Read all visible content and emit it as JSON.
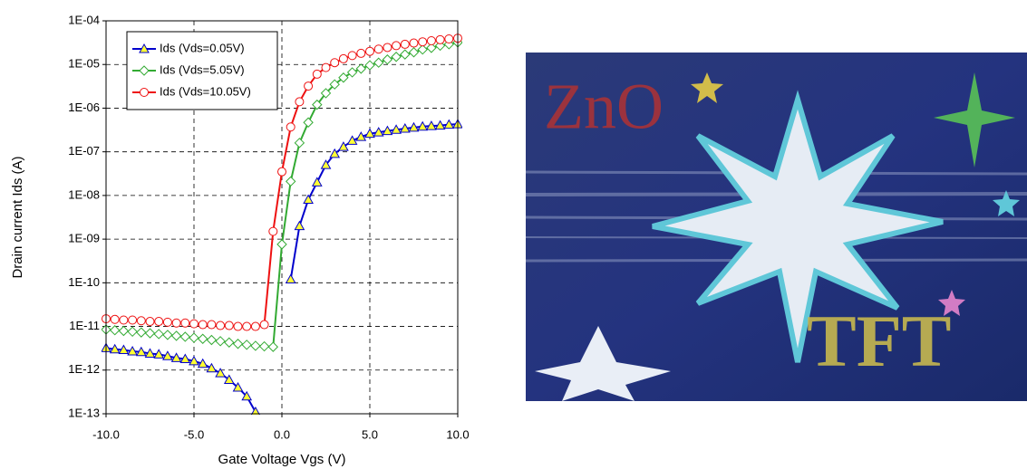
{
  "chart_data": {
    "type": "line",
    "log_y": true,
    "grid": true,
    "legend": "upper left",
    "xlabel": "Gate Voltage Vgs (V)",
    "ylabel": "Drain current Ids (A)",
    "x": [
      -10,
      -9.5,
      -9,
      -8.5,
      -8,
      -7.5,
      -7,
      -6.5,
      -6,
      -5.5,
      -5,
      -4.5,
      -4,
      -3.5,
      -3,
      -2.5,
      -2,
      -1.5,
      -1,
      -0.5,
      0,
      0.5,
      1,
      1.5,
      2,
      2.5,
      3,
      3.5,
      4,
      4.5,
      5,
      5.5,
      6,
      6.5,
      7,
      7.5,
      8,
      8.5,
      9,
      9.5,
      10
    ],
    "xlim": [
      -10,
      10
    ],
    "xticks": [
      {
        "value": -10,
        "label": "-10.0"
      },
      {
        "value": -5,
        "label": "-5.0"
      },
      {
        "value": 0,
        "label": "0.0"
      },
      {
        "value": 5,
        "label": "5.0"
      },
      {
        "value": 10,
        "label": "10.0"
      }
    ],
    "ylim": [
      1e-13,
      0.0001
    ],
    "yticks": [
      {
        "value": 1e-13,
        "label": "1E-13"
      },
      {
        "value": 1e-12,
        "label": "1E-12"
      },
      {
        "value": 1e-11,
        "label": "1E-11"
      },
      {
        "value": 1e-10,
        "label": "1E-10"
      },
      {
        "value": 1e-09,
        "label": "1E-09"
      },
      {
        "value": 1e-08,
        "label": "1E-08"
      },
      {
        "value": 1e-07,
        "label": "1E-07"
      },
      {
        "value": 1e-06,
        "label": "1E-06"
      },
      {
        "value": 1e-05,
        "label": "1E-05"
      },
      {
        "value": 0.0001,
        "label": "1E-04"
      }
    ],
    "series": [
      {
        "name": "Ids (Vds=0.05V)",
        "color": "#0000cc",
        "marker": "triangle",
        "marker_fill": "#ffff33",
        "values": [
          3.2e-12,
          3e-12,
          2.9e-12,
          2.7e-12,
          2.6e-12,
          2.4e-12,
          2.3e-12,
          2.1e-12,
          1.9e-12,
          1.8e-12,
          1.6e-12,
          1.4e-12,
          1.1e-12,
          8.5e-13,
          6e-13,
          4e-13,
          2.5e-13,
          1.1e-13,
          null,
          null,
          null,
          1.2e-10,
          2e-09,
          8e-09,
          2e-08,
          5e-08,
          9e-08,
          1.3e-07,
          1.8e-07,
          2.2e-07,
          2.6e-07,
          2.8e-07,
          3e-07,
          3.2e-07,
          3.4e-07,
          3.6e-07,
          3.8e-07,
          3.9e-07,
          4e-07,
          4.2e-07,
          4.3e-07
        ]
      },
      {
        "name": "Ids (Vds=5.05V)",
        "color": "#33aa33",
        "marker": "diamond",
        "marker_fill": "#ffffff",
        "values": [
          8.5e-12,
          8.2e-12,
          7.9e-12,
          7.6e-12,
          7.3e-12,
          7e-12,
          6.7e-12,
          6.4e-12,
          6.1e-12,
          5.8e-12,
          5.5e-12,
          5.2e-12,
          4.9e-12,
          4.6e-12,
          4.3e-12,
          4e-12,
          3.8e-12,
          3.6e-12,
          3.5e-12,
          3.4e-12,
          7.6e-10,
          2.1e-08,
          1.6e-07,
          4.7e-07,
          1.2e-06,
          2.2e-06,
          3.5e-06,
          5e-06,
          6.6e-06,
          8e-06,
          9.6e-06,
          1.1e-05,
          1.3e-05,
          1.5e-05,
          1.7e-05,
          1.9e-05,
          2.2e-05,
          2.4e-05,
          2.7e-05,
          2.9e-05,
          3.2e-05
        ]
      },
      {
        "name": "Ids (Vds=10.05V)",
        "color": "#ee1111",
        "marker": "circle",
        "marker_fill": "#ffffff",
        "values": [
          1.5e-11,
          1.45e-11,
          1.4e-11,
          1.4e-11,
          1.35e-11,
          1.3e-11,
          1.3e-11,
          1.25e-11,
          1.2e-11,
          1.2e-11,
          1.15e-11,
          1.1e-11,
          1.1e-11,
          1.05e-11,
          1.05e-11,
          1e-11,
          1e-11,
          1e-11,
          1.1e-11,
          1.5e-09,
          3.5e-08,
          3.7e-07,
          1.4e-06,
          3.2e-06,
          6e-06,
          8.5e-06,
          1.1e-05,
          1.35e-05,
          1.6e-05,
          1.8e-05,
          2e-05,
          2.25e-05,
          2.45e-05,
          2.7e-05,
          2.9e-05,
          3.1e-05,
          3.3e-05,
          3.5e-05,
          3.7e-05,
          3.85e-05,
          4e-05
        ]
      }
    ]
  },
  "photo_labels": [
    "ZnO",
    "TFT"
  ]
}
